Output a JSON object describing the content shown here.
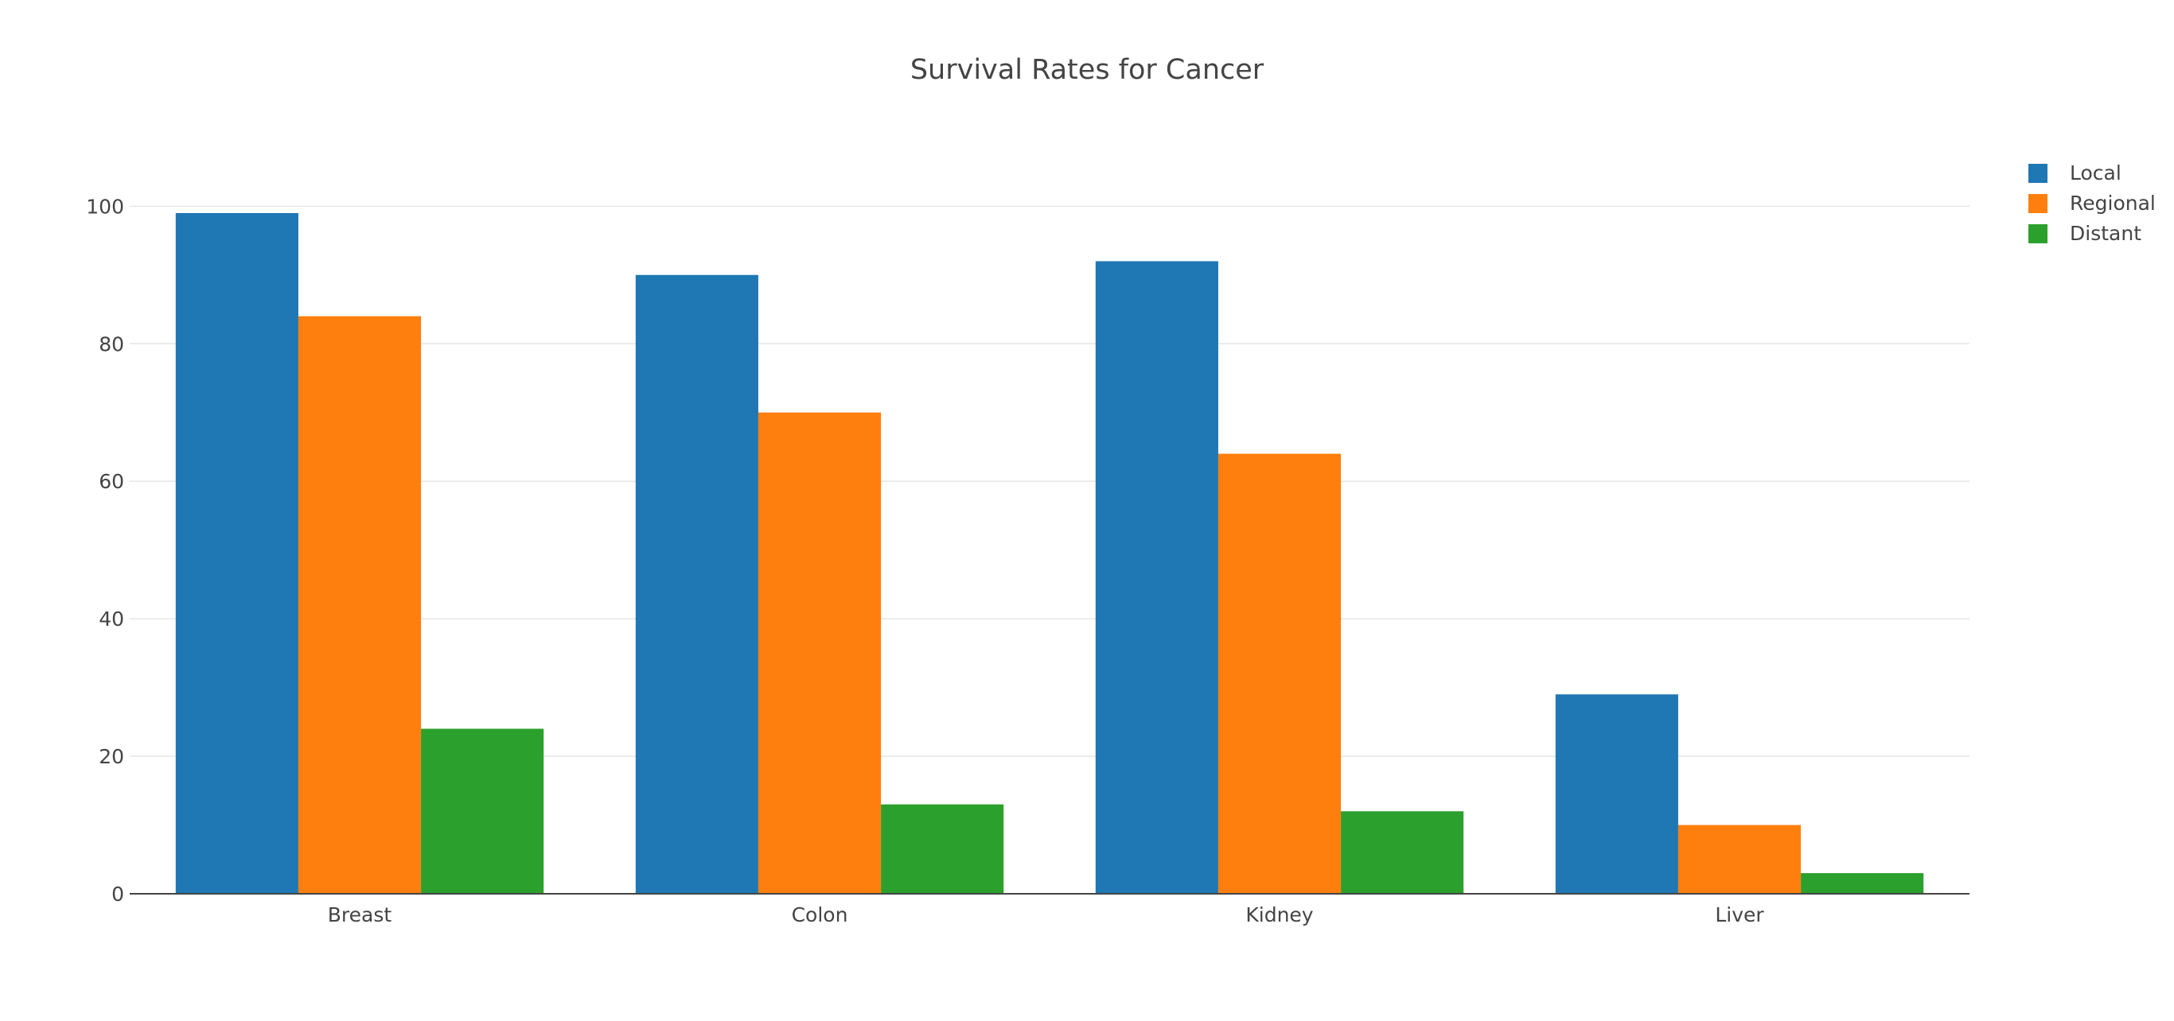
{
  "chart_data": {
    "type": "bar",
    "title": "Survival Rates for Cancer",
    "xlabel": "",
    "ylabel": "",
    "categories": [
      "Breast",
      "Colon",
      "Kidney",
      "Liver"
    ],
    "series": [
      {
        "name": "Local",
        "color": "#1f77b4",
        "values": [
          99,
          90,
          92,
          29
        ]
      },
      {
        "name": "Regional",
        "color": "#ff7f0e",
        "values": [
          84,
          70,
          64,
          10
        ]
      },
      {
        "name": "Distant",
        "color": "#2ca02c",
        "values": [
          24,
          13,
          12,
          3
        ]
      }
    ],
    "ylim": [
      0,
      104.2
    ],
    "yticks": [
      0,
      20,
      40,
      60,
      80,
      100
    ],
    "grid": true,
    "legend_position": "top-right"
  }
}
